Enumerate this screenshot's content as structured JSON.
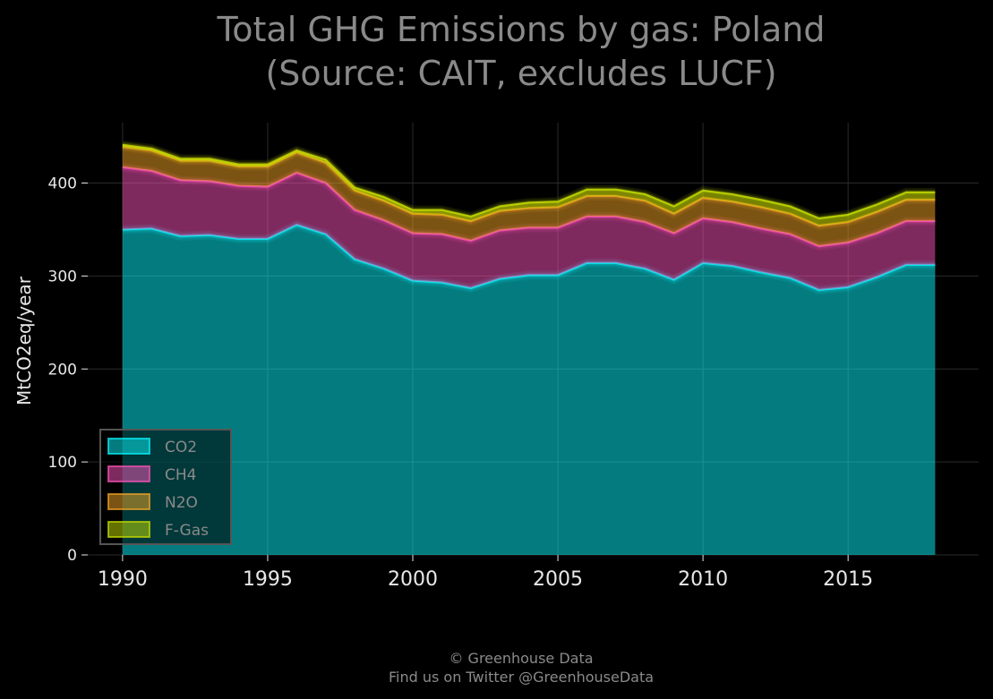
{
  "title": [
    "Total GHG Emissions by gas: Poland",
    "(Source: CAIT, excludes LUCF)"
  ],
  "footer": [
    "© Greenhouse Data",
    "Find us on Twitter @GreenhouseData"
  ],
  "colors": {
    "background": "#000000",
    "grid": "#2a2a2a",
    "CO2": "#08f7fe",
    "CH4": "#fe53bb",
    "N2O": "#f5a623",
    "F-Gas": "#c8e000"
  },
  "chart_data": {
    "type": "area",
    "stacked": true,
    "title": "Total GHG Emissions by gas: Poland (Source: CAIT, excludes LUCF)",
    "xlabel": "",
    "ylabel": "MtCO2eq/year",
    "xlim": [
      1988.8,
      2019.5
    ],
    "ylim": [
      0,
      465
    ],
    "xticks": [
      1990,
      1995,
      2000,
      2005,
      2010,
      2015
    ],
    "yticks": [
      0,
      100,
      200,
      300,
      400
    ],
    "grid": true,
    "legend": "bottom-left",
    "x": [
      1990,
      1991,
      1992,
      1993,
      1994,
      1995,
      1996,
      1997,
      1998,
      1999,
      2000,
      2001,
      2002,
      2003,
      2004,
      2005,
      2006,
      2007,
      2008,
      2009,
      2010,
      2011,
      2012,
      2013,
      2014,
      2015,
      2016,
      2017,
      2018
    ],
    "series": [
      {
        "name": "CO2",
        "values": [
          350,
          351,
          343,
          344,
          340,
          340,
          355,
          345,
          318,
          308,
          295,
          293,
          287,
          297,
          301,
          301,
          314,
          314,
          308,
          296,
          314,
          311,
          304,
          298,
          285,
          288,
          299,
          312,
          312
        ]
      },
      {
        "name": "CH4",
        "values": [
          67,
          62,
          60,
          58,
          57,
          56,
          56,
          55,
          53,
          52,
          51,
          52,
          51,
          52,
          51,
          51,
          50,
          50,
          50,
          50,
          48,
          47,
          47,
          47,
          47,
          48,
          47,
          47,
          47
        ]
      },
      {
        "name": "N2O",
        "values": [
          22,
          22,
          21,
          22,
          21,
          22,
          22,
          22,
          21,
          21,
          21,
          21,
          21,
          21,
          21,
          22,
          22,
          22,
          23,
          21,
          22,
          22,
          23,
          22,
          22,
          22,
          23,
          23,
          23
        ]
      },
      {
        "name": "F-Gas",
        "values": [
          2,
          2,
          2,
          2,
          2,
          2,
          2,
          3,
          3,
          4,
          4,
          5,
          5,
          5,
          6,
          6,
          7,
          7,
          7,
          8,
          8,
          8,
          8,
          8,
          8,
          8,
          8,
          8,
          8
        ]
      }
    ]
  }
}
